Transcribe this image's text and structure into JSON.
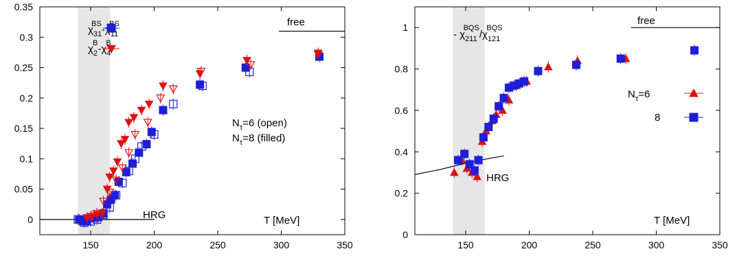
{
  "chart_data": [
    {
      "type": "scatter",
      "xlabel": "T [MeV]",
      "xlim": [
        110,
        350
      ],
      "ylim": [
        -0.025,
        0.35
      ],
      "xticks": [
        150,
        200,
        250,
        300,
        350
      ],
      "yticks": [
        0,
        0.05,
        0.1,
        0.15,
        0.2,
        0.25,
        0.3,
        0.35
      ],
      "ytick_labels": [
        "0",
        "0.05",
        "0.1",
        "0.15",
        "0.2",
        "0.25",
        "0.3",
        "0.35"
      ],
      "shaded_band": [
        140,
        165
      ],
      "legend": [
        {
          "base": "χ",
          "sub1": "31",
          "sup1": "BS",
          "sep": "-",
          "base2": "χ",
          "sub2": "11",
          "sup2": "BS",
          "color": "#1f1fd6",
          "marker": "square"
        },
        {
          "base": "χ",
          "sub1": "2",
          "sup1": "B",
          "sep": "-",
          "base2": "χ",
          "sub2": "4",
          "sup2": "B",
          "color": "#e01010",
          "marker": "triangle-down"
        }
      ],
      "annotations": {
        "free": "free",
        "hrg": "HRG",
        "ntau_open": "N",
        "ntau_open_sub": "τ",
        "ntau_open_rest": "=6 (open)",
        "ntau_filled": "N",
        "ntau_filled_sub": "τ",
        "ntau_filled_rest": "=8 (filled)"
      },
      "free_line": {
        "x": [
          298,
          350
        ],
        "y": 0.31
      },
      "hrg_line": {
        "x": [
          110,
          200
        ],
        "y": 0.0
      },
      "series": [
        {
          "marker": "square",
          "color": "#1f1fd6",
          "filled": true,
          "x": [
            141,
            144,
            147,
            150,
            153,
            156,
            160,
            163,
            166,
            169,
            172,
            178,
            183,
            188,
            194,
            198,
            207,
            236,
            272,
            330
          ],
          "y": [
            0.0,
            -0.003,
            -0.002,
            0.002,
            0.003,
            0.004,
            0.01,
            0.025,
            0.033,
            0.04,
            0.062,
            0.078,
            0.092,
            0.11,
            0.124,
            0.144,
            0.18,
            0.222,
            0.25,
            0.268
          ]
        },
        {
          "marker": "square",
          "color": "#1f1fd6",
          "filled": false,
          "x": [
            140,
            145,
            150,
            155,
            160,
            165,
            170,
            175,
            180,
            185,
            190,
            200,
            215,
            238,
            275
          ],
          "y": [
            0.0,
            -0.005,
            -0.003,
            0.0,
            0.008,
            0.02,
            0.04,
            0.06,
            0.08,
            0.1,
            0.12,
            0.14,
            0.19,
            0.22,
            0.243
          ]
        },
        {
          "marker": "triangle-down",
          "color": "#e01010",
          "filled": true,
          "x": [
            147,
            151,
            155,
            159,
            163,
            165,
            168,
            171,
            174,
            177,
            180,
            184,
            190,
            196,
            207,
            236,
            273,
            329
          ],
          "y": [
            0.003,
            0.005,
            0.008,
            0.01,
            0.05,
            0.07,
            0.08,
            0.095,
            0.125,
            0.132,
            0.16,
            0.168,
            0.18,
            0.19,
            0.22,
            0.24,
            0.262,
            0.274
          ]
        },
        {
          "marker": "triangle-down",
          "color": "#e01010",
          "filled": false,
          "x": [
            150,
            155,
            160,
            165,
            170,
            175,
            180,
            185,
            195,
            205,
            215,
            237,
            276,
            329
          ],
          "y": [
            0.005,
            0.01,
            0.03,
            0.045,
            0.065,
            0.085,
            0.11,
            0.14,
            0.16,
            0.2,
            0.215,
            0.244,
            0.255,
            0.272
          ]
        }
      ]
    },
    {
      "type": "scatter",
      "xlabel": "T [MeV]",
      "xlim": [
        110,
        350
      ],
      "ylim": [
        0,
        1.1
      ],
      "xticks": [
        150,
        200,
        250,
        300,
        350
      ],
      "yticks": [
        0,
        0.2,
        0.4,
        0.6,
        0.8,
        1
      ],
      "ytick_labels": [
        "0",
        "0.2",
        "0.4",
        "0.6",
        "0.8",
        "1"
      ],
      "shaded_band": [
        140,
        165
      ],
      "title": {
        "prefix": "- χ",
        "sub1": "211",
        "sup1": "BQS",
        "mid": "/χ",
        "sub2": "121",
        "sup2": "BQS"
      },
      "annotations": {
        "free": "free",
        "hrg": "HRG"
      },
      "legend": [
        {
          "label_base": "N",
          "label_sub": "τ",
          "label_rest": "=6",
          "color": "#e01010",
          "marker": "triangle-up"
        },
        {
          "label_base": "8",
          "color": "#1f1fd6",
          "marker": "square"
        }
      ],
      "free_line": {
        "x": [
          280,
          350
        ],
        "y": 1.0
      },
      "hrg_curve": {
        "x": [
          110,
          130,
          150,
          170,
          180
        ],
        "y": [
          0.29,
          0.315,
          0.345,
          0.37,
          0.38
        ]
      },
      "series": [
        {
          "marker": "triangle-up",
          "color": "#e01010",
          "name": "N_τ=6",
          "x": [
            141,
            147,
            151,
            155,
            159,
            163,
            166,
            171,
            174,
            179,
            184,
            190,
            198,
            215,
            238,
            276
          ],
          "y": [
            0.3,
            0.36,
            0.32,
            0.3,
            0.28,
            0.45,
            0.5,
            0.55,
            0.58,
            0.6,
            0.65,
            0.72,
            0.74,
            0.81,
            0.84,
            0.85
          ]
        },
        {
          "marker": "square",
          "color": "#1f1fd6",
          "name": "8",
          "x": [
            144,
            149,
            153,
            157,
            160,
            164,
            168,
            172,
            176,
            180,
            184,
            188,
            192,
            196,
            207,
            237,
            272,
            330
          ],
          "y": [
            0.36,
            0.39,
            0.34,
            0.31,
            0.36,
            0.47,
            0.52,
            0.56,
            0.62,
            0.66,
            0.71,
            0.72,
            0.73,
            0.74,
            0.79,
            0.82,
            0.85,
            0.89
          ]
        }
      ]
    }
  ]
}
